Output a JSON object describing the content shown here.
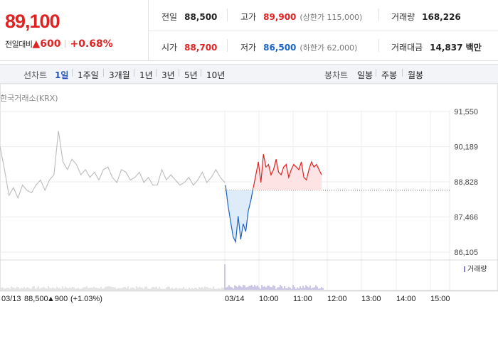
{
  "quote": {
    "price": "89,100",
    "change_label": "전일대비",
    "change_amount": "▲600",
    "change_percent": "+0.68%"
  },
  "stats": {
    "prev_close": {
      "label": "전일",
      "value": "88,500"
    },
    "high": {
      "label": "고가",
      "value": "89,900",
      "sub": "(상한가 115,000)"
    },
    "volume": {
      "label": "거래량",
      "value": "168,226"
    },
    "open": {
      "label": "시가",
      "value": "88,700"
    },
    "low": {
      "label": "저가",
      "value": "86,500",
      "sub": "(하한가 62,000)"
    },
    "turnover": {
      "label": "거래대금",
      "value": "14,837 백만"
    }
  },
  "tabs": {
    "line_title": "선차트",
    "line_periods": [
      "1일",
      "1주일",
      "3개월",
      "1년",
      "3년",
      "5년",
      "10년"
    ],
    "active_period": "1일",
    "candle_title": "봉차트",
    "candle_periods": [
      "일봉",
      "주봉",
      "월봉"
    ]
  },
  "chart": {
    "source": "한국거래소(KRX)",
    "volume_legend": "거래량",
    "prev_day_label": "03/13",
    "prev_day_close": "88,500",
    "prev_day_change": "▲900",
    "prev_day_pct": "(+1.03%)",
    "colors": {
      "up": "#e12222",
      "down": "#1a63c9",
      "prev": "#bbbbbb",
      "up_fill": "#fde3e3",
      "down_fill": "#deebf8"
    }
  },
  "chart_data": {
    "type": "line",
    "title": "",
    "y_ticks": [
      "91,550",
      "90,189",
      "88,828",
      "87,466",
      "86,105"
    ],
    "ylim": [
      86105,
      91550
    ],
    "x_ticks": [
      "03/14",
      "10:00",
      "11:00",
      "12:00",
      "13:00",
      "14:00",
      "15:00"
    ],
    "reference_line": 88500,
    "series": [
      {
        "name": "03/13",
        "values": [
          90200,
          89300,
          88300,
          88600,
          88200,
          88700,
          88500,
          88400,
          88700,
          88900,
          88500,
          88900,
          89100,
          90800,
          89600,
          89300,
          89700,
          89500,
          89100,
          89300,
          89000,
          89200,
          88900,
          89300,
          89400,
          89000,
          88800,
          89300,
          89200,
          88900,
          89000,
          89200,
          88800,
          89000,
          88700,
          88700,
          89300,
          88900,
          89100,
          88900,
          88700,
          88800,
          89000,
          88700,
          88900,
          89200,
          88800,
          89000,
          89300,
          89000,
          88800
        ]
      },
      {
        "name": "03/14",
        "values": [
          88700,
          87900,
          87300,
          86700,
          86500,
          87500,
          86600,
          87200,
          86900,
          87700,
          88100,
          88600,
          89100,
          89600,
          88800,
          89900,
          89400,
          89500,
          89100,
          89300,
          89700,
          89200,
          89100,
          89400,
          89500,
          89000,
          89300,
          89500,
          89400,
          89300,
          89600,
          89000,
          88900,
          89300,
          89600,
          89400,
          89500,
          89300,
          89100
        ]
      }
    ],
    "volume_legend": "거래량"
  }
}
